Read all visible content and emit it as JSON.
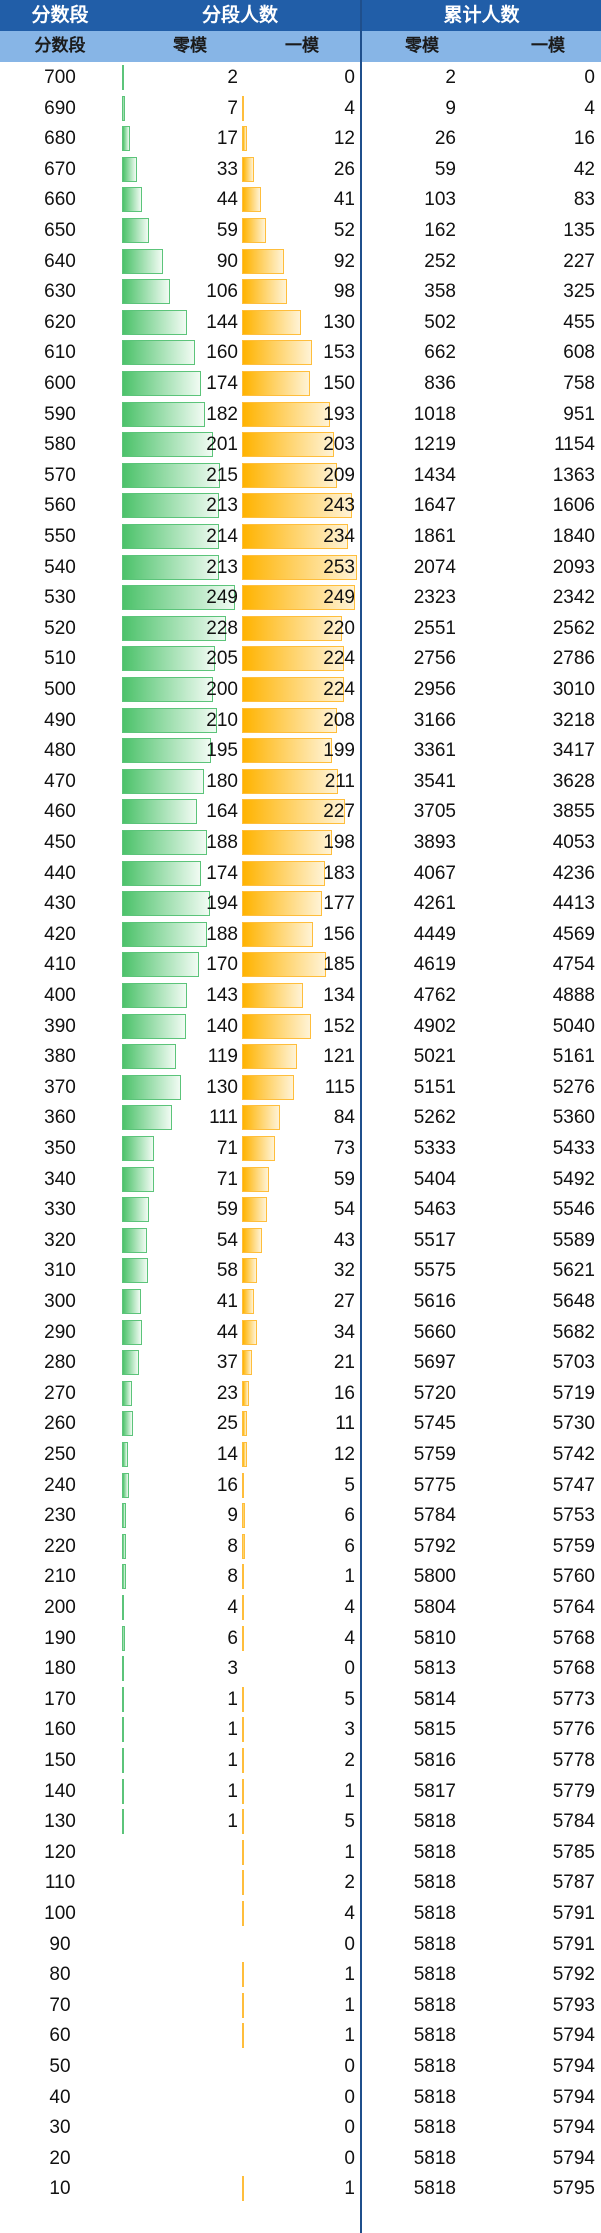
{
  "header": {
    "score_band": "分数段",
    "band_count": "分段人数",
    "cumulative": "累计人数",
    "sub_score_band": "分数段",
    "sub_zero_mock": "零模",
    "sub_first_mock": "一模",
    "sub_cum_zero_mock": "零模",
    "sub_cum_first_mock": "一模"
  },
  "colors": {
    "header_dark": "#215ea8",
    "header_light": "#87b5e6",
    "bar_zero_mock": "#4cc26a",
    "bar_first_mock": "#ffb300"
  },
  "rows": [
    {
      "score": "700",
      "zero": "2",
      "first": "0",
      "cum_zero": "2",
      "cum_first": "0"
    },
    {
      "score": "690",
      "zero": "7",
      "first": "4",
      "cum_zero": "9",
      "cum_first": "4"
    },
    {
      "score": "680",
      "zero": "17",
      "first": "12",
      "cum_zero": "26",
      "cum_first": "16"
    },
    {
      "score": "670",
      "zero": "33",
      "first": "26",
      "cum_zero": "59",
      "cum_first": "42"
    },
    {
      "score": "660",
      "zero": "44",
      "first": "41",
      "cum_zero": "103",
      "cum_first": "83"
    },
    {
      "score": "650",
      "zero": "59",
      "first": "52",
      "cum_zero": "162",
      "cum_first": "135"
    },
    {
      "score": "640",
      "zero": "90",
      "first": "92",
      "cum_zero": "252",
      "cum_first": "227"
    },
    {
      "score": "630",
      "zero": "106",
      "first": "98",
      "cum_zero": "358",
      "cum_first": "325"
    },
    {
      "score": "620",
      "zero": "144",
      "first": "130",
      "cum_zero": "502",
      "cum_first": "455"
    },
    {
      "score": "610",
      "zero": "160",
      "first": "153",
      "cum_zero": "662",
      "cum_first": "608"
    },
    {
      "score": "600",
      "zero": "174",
      "first": "150",
      "cum_zero": "836",
      "cum_first": "758"
    },
    {
      "score": "590",
      "zero": "182",
      "first": "193",
      "cum_zero": "1018",
      "cum_first": "951"
    },
    {
      "score": "580",
      "zero": "201",
      "first": "203",
      "cum_zero": "1219",
      "cum_first": "1154"
    },
    {
      "score": "570",
      "zero": "215",
      "first": "209",
      "cum_zero": "1434",
      "cum_first": "1363"
    },
    {
      "score": "560",
      "zero": "213",
      "first": "243",
      "cum_zero": "1647",
      "cum_first": "1606"
    },
    {
      "score": "550",
      "zero": "214",
      "first": "234",
      "cum_zero": "1861",
      "cum_first": "1840"
    },
    {
      "score": "540",
      "zero": "213",
      "first": "253",
      "cum_zero": "2074",
      "cum_first": "2093"
    },
    {
      "score": "530",
      "zero": "249",
      "first": "249",
      "cum_zero": "2323",
      "cum_first": "2342"
    },
    {
      "score": "520",
      "zero": "228",
      "first": "220",
      "cum_zero": "2551",
      "cum_first": "2562"
    },
    {
      "score": "510",
      "zero": "205",
      "first": "224",
      "cum_zero": "2756",
      "cum_first": "2786"
    },
    {
      "score": "500",
      "zero": "200",
      "first": "224",
      "cum_zero": "2956",
      "cum_first": "3010"
    },
    {
      "score": "490",
      "zero": "210",
      "first": "208",
      "cum_zero": "3166",
      "cum_first": "3218"
    },
    {
      "score": "480",
      "zero": "195",
      "first": "199",
      "cum_zero": "3361",
      "cum_first": "3417"
    },
    {
      "score": "470",
      "zero": "180",
      "first": "211",
      "cum_zero": "3541",
      "cum_first": "3628"
    },
    {
      "score": "460",
      "zero": "164",
      "first": "227",
      "cum_zero": "3705",
      "cum_first": "3855"
    },
    {
      "score": "450",
      "zero": "188",
      "first": "198",
      "cum_zero": "3893",
      "cum_first": "4053"
    },
    {
      "score": "440",
      "zero": "174",
      "first": "183",
      "cum_zero": "4067",
      "cum_first": "4236"
    },
    {
      "score": "430",
      "zero": "194",
      "first": "177",
      "cum_zero": "4261",
      "cum_first": "4413"
    },
    {
      "score": "420",
      "zero": "188",
      "first": "156",
      "cum_zero": "4449",
      "cum_first": "4569"
    },
    {
      "score": "410",
      "zero": "170",
      "first": "185",
      "cum_zero": "4619",
      "cum_first": "4754"
    },
    {
      "score": "400",
      "zero": "143",
      "first": "134",
      "cum_zero": "4762",
      "cum_first": "4888"
    },
    {
      "score": "390",
      "zero": "140",
      "first": "152",
      "cum_zero": "4902",
      "cum_first": "5040"
    },
    {
      "score": "380",
      "zero": "119",
      "first": "121",
      "cum_zero": "5021",
      "cum_first": "5161"
    },
    {
      "score": "370",
      "zero": "130",
      "first": "115",
      "cum_zero": "5151",
      "cum_first": "5276"
    },
    {
      "score": "360",
      "zero": "111",
      "first": "84",
      "cum_zero": "5262",
      "cum_first": "5360"
    },
    {
      "score": "350",
      "zero": "71",
      "first": "73",
      "cum_zero": "5333",
      "cum_first": "5433"
    },
    {
      "score": "340",
      "zero": "71",
      "first": "59",
      "cum_zero": "5404",
      "cum_first": "5492"
    },
    {
      "score": "330",
      "zero": "59",
      "first": "54",
      "cum_zero": "5463",
      "cum_first": "5546"
    },
    {
      "score": "320",
      "zero": "54",
      "first": "43",
      "cum_zero": "5517",
      "cum_first": "5589"
    },
    {
      "score": "310",
      "zero": "58",
      "first": "32",
      "cum_zero": "5575",
      "cum_first": "5621"
    },
    {
      "score": "300",
      "zero": "41",
      "first": "27",
      "cum_zero": "5616",
      "cum_first": "5648"
    },
    {
      "score": "290",
      "zero": "44",
      "first": "34",
      "cum_zero": "5660",
      "cum_first": "5682"
    },
    {
      "score": "280",
      "zero": "37",
      "first": "21",
      "cum_zero": "5697",
      "cum_first": "5703"
    },
    {
      "score": "270",
      "zero": "23",
      "first": "16",
      "cum_zero": "5720",
      "cum_first": "5719"
    },
    {
      "score": "260",
      "zero": "25",
      "first": "11",
      "cum_zero": "5745",
      "cum_first": "5730"
    },
    {
      "score": "250",
      "zero": "14",
      "first": "12",
      "cum_zero": "5759",
      "cum_first": "5742"
    },
    {
      "score": "240",
      "zero": "16",
      "first": "5",
      "cum_zero": "5775",
      "cum_first": "5747"
    },
    {
      "score": "230",
      "zero": "9",
      "first": "6",
      "cum_zero": "5784",
      "cum_first": "5753"
    },
    {
      "score": "220",
      "zero": "8",
      "first": "6",
      "cum_zero": "5792",
      "cum_first": "5759"
    },
    {
      "score": "210",
      "zero": "8",
      "first": "1",
      "cum_zero": "5800",
      "cum_first": "5760"
    },
    {
      "score": "200",
      "zero": "4",
      "first": "4",
      "cum_zero": "5804",
      "cum_first": "5764"
    },
    {
      "score": "190",
      "zero": "6",
      "first": "4",
      "cum_zero": "5810",
      "cum_first": "5768"
    },
    {
      "score": "180",
      "zero": "3",
      "first": "0",
      "cum_zero": "5813",
      "cum_first": "5768"
    },
    {
      "score": "170",
      "zero": "1",
      "first": "5",
      "cum_zero": "5814",
      "cum_first": "5773"
    },
    {
      "score": "160",
      "zero": "1",
      "first": "3",
      "cum_zero": "5815",
      "cum_first": "5776"
    },
    {
      "score": "150",
      "zero": "1",
      "first": "2",
      "cum_zero": "5816",
      "cum_first": "5778"
    },
    {
      "score": "140",
      "zero": "1",
      "first": "1",
      "cum_zero": "5817",
      "cum_first": "5779"
    },
    {
      "score": "130",
      "zero": "1",
      "first": "5",
      "cum_zero": "5818",
      "cum_first": "5784"
    },
    {
      "score": "120",
      "zero": "",
      "first": "1",
      "cum_zero": "5818",
      "cum_first": "5785"
    },
    {
      "score": "110",
      "zero": "",
      "first": "2",
      "cum_zero": "5818",
      "cum_first": "5787"
    },
    {
      "score": "100",
      "zero": "",
      "first": "4",
      "cum_zero": "5818",
      "cum_first": "5791"
    },
    {
      "score": "90",
      "zero": "",
      "first": "0",
      "cum_zero": "5818",
      "cum_first": "5791"
    },
    {
      "score": "80",
      "zero": "",
      "first": "1",
      "cum_zero": "5818",
      "cum_first": "5792"
    },
    {
      "score": "70",
      "zero": "",
      "first": "1",
      "cum_zero": "5818",
      "cum_first": "5793"
    },
    {
      "score": "60",
      "zero": "",
      "first": "1",
      "cum_zero": "5818",
      "cum_first": "5794"
    },
    {
      "score": "50",
      "zero": "",
      "first": "0",
      "cum_zero": "5818",
      "cum_first": "5794"
    },
    {
      "score": "40",
      "zero": "",
      "first": "0",
      "cum_zero": "5818",
      "cum_first": "5794"
    },
    {
      "score": "30",
      "zero": "",
      "first": "0",
      "cum_zero": "5818",
      "cum_first": "5794"
    },
    {
      "score": "20",
      "zero": "",
      "first": "0",
      "cum_zero": "5818",
      "cum_first": "5794"
    },
    {
      "score": "10",
      "zero": "",
      "first": "1",
      "cum_zero": "5818",
      "cum_first": "5795"
    }
  ]
}
